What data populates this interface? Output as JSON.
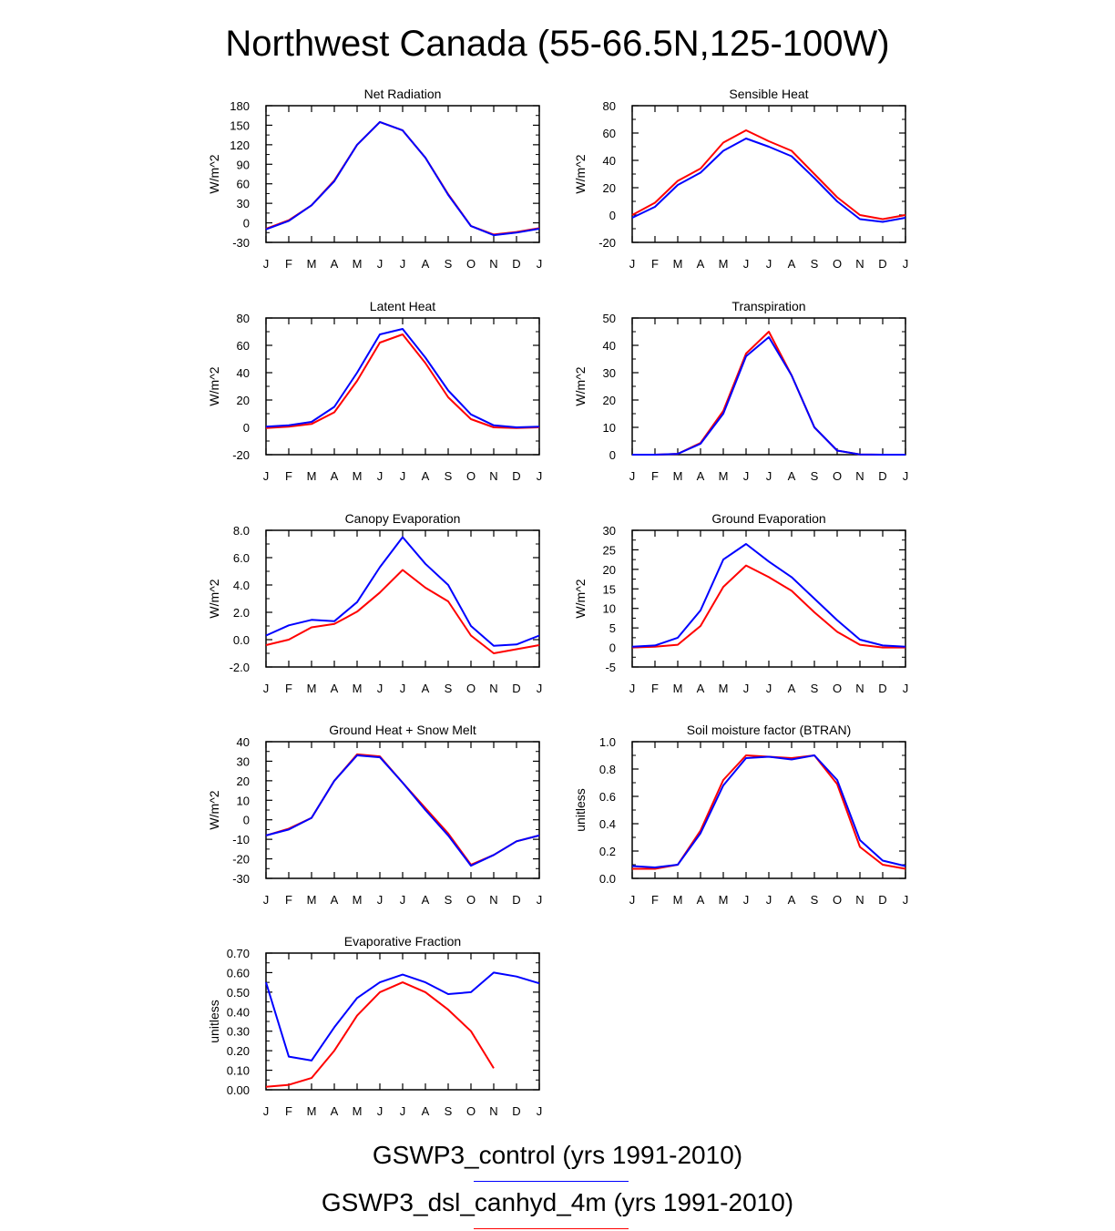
{
  "title": "Northwest Canada (55-66.5N,125-100W)",
  "months": [
    "J",
    "F",
    "M",
    "A",
    "M",
    "J",
    "J",
    "A",
    "S",
    "O",
    "N",
    "D",
    "J"
  ],
  "legend": [
    {
      "label": "GSWP3_control (yrs 1991-2010)",
      "color": "#0000ff"
    },
    {
      "label": "GSWP3_dsl_canhyd_4m (yrs 1991-2010)",
      "color": "#ff0000"
    }
  ],
  "chart_data": [
    {
      "type": "line",
      "title": "Net Radiation",
      "ylabel": "W/m^2",
      "ylim": [
        -30,
        180
      ],
      "yticks": [
        -30,
        0,
        30,
        60,
        90,
        120,
        150,
        180
      ],
      "yticklabels": [
        "-30",
        "0",
        "30",
        "60",
        "90",
        "120",
        "150",
        "180"
      ],
      "series": [
        {
          "name": "GSWP3_control",
          "color": "#0000ff",
          "values": [
            -10,
            3,
            27,
            64,
            120,
            155,
            142,
            100,
            43,
            -5,
            -19,
            -15,
            -9
          ]
        },
        {
          "name": "GSWP3_dsl_canhyd_4m",
          "color": "#ff0000",
          "values": [
            -9,
            4,
            27,
            65,
            120,
            155,
            142,
            100,
            44,
            -5,
            -18,
            -14,
            -8
          ]
        }
      ]
    },
    {
      "type": "line",
      "title": "Sensible Heat",
      "ylabel": "W/m^2",
      "ylim": [
        -20,
        80
      ],
      "yticks": [
        -20,
        0,
        20,
        40,
        60,
        80
      ],
      "yticklabels": [
        "-20",
        "0",
        "20",
        "40",
        "60",
        "80"
      ],
      "series": [
        {
          "name": "GSWP3_control",
          "color": "#0000ff",
          "values": [
            -2,
            6,
            22,
            31,
            47,
            56,
            50,
            43,
            27,
            10,
            -3,
            -5,
            -2
          ]
        },
        {
          "name": "GSWP3_dsl_canhyd_4m",
          "color": "#ff0000",
          "values": [
            0,
            9,
            25,
            34,
            53,
            62,
            54,
            47,
            30,
            13,
            0,
            -3,
            0
          ]
        }
      ]
    },
    {
      "type": "line",
      "title": "Latent Heat",
      "ylabel": "W/m^2",
      "ylim": [
        -20,
        80
      ],
      "yticks": [
        -20,
        0,
        20,
        40,
        60,
        80
      ],
      "yticklabels": [
        "-20",
        "0",
        "20",
        "40",
        "60",
        "80"
      ],
      "series": [
        {
          "name": "GSWP3_control",
          "color": "#0000ff",
          "values": [
            0.5,
            1.5,
            4,
            15,
            40,
            68,
            72,
            51,
            27,
            9.5,
            1.5,
            0,
            0.5
          ]
        },
        {
          "name": "GSWP3_dsl_canhyd_4m",
          "color": "#ff0000",
          "values": [
            -0.5,
            0.5,
            2.5,
            11,
            34,
            62,
            68,
            47,
            22,
            6,
            0,
            -0.5,
            0
          ]
        }
      ]
    },
    {
      "type": "line",
      "title": "Transpiration",
      "ylabel": "W/m^2",
      "ylim": [
        0,
        50
      ],
      "yticks": [
        0,
        10,
        20,
        30,
        40,
        50
      ],
      "yticklabels": [
        "0",
        "10",
        "20",
        "30",
        "40",
        "50"
      ],
      "series": [
        {
          "name": "GSWP3_control",
          "color": "#0000ff",
          "values": [
            0,
            0,
            0.3,
            4,
            15,
            36,
            43,
            29,
            10,
            1.5,
            0.1,
            0,
            0
          ]
        },
        {
          "name": "GSWP3_dsl_canhyd_4m",
          "color": "#ff0000",
          "values": [
            0,
            0,
            0.3,
            4.3,
            16,
            37,
            45,
            29,
            10,
            1.5,
            0.1,
            0,
            0
          ]
        }
      ]
    },
    {
      "type": "line",
      "title": "Canopy Evaporation",
      "ylabel": "W/m^2",
      "ylim": [
        -2.0,
        8.0
      ],
      "yticks": [
        -2,
        0,
        2,
        4,
        6,
        8
      ],
      "yticklabels": [
        "-2.0",
        "0.0",
        "2.0",
        "4.0",
        "6.0",
        "8.0"
      ],
      "series": [
        {
          "name": "GSWP3_control",
          "color": "#0000ff",
          "values": [
            0.3,
            1.05,
            1.45,
            1.35,
            2.75,
            5.3,
            7.5,
            5.55,
            4.0,
            1.0,
            -0.45,
            -0.35,
            0.3
          ]
        },
        {
          "name": "GSWP3_dsl_canhyd_4m",
          "color": "#ff0000",
          "values": [
            -0.4,
            0.0,
            0.9,
            1.15,
            2.05,
            3.45,
            5.1,
            3.8,
            2.8,
            0.3,
            -1.0,
            -0.7,
            -0.4
          ]
        }
      ]
    },
    {
      "type": "line",
      "title": "Ground Evaporation",
      "ylabel": "W/m^2",
      "ylim": [
        -5,
        30
      ],
      "yticks": [
        -5,
        0,
        5,
        10,
        15,
        20,
        25,
        30
      ],
      "yticklabels": [
        "-5",
        "0",
        "5",
        "10",
        "15",
        "20",
        "25",
        "30"
      ],
      "series": [
        {
          "name": "GSWP3_control",
          "color": "#0000ff",
          "values": [
            0.2,
            0.5,
            2.5,
            9.5,
            22.5,
            26.5,
            22,
            18,
            12.5,
            7,
            2,
            0.5,
            0.2
          ]
        },
        {
          "name": "GSWP3_dsl_canhyd_4m",
          "color": "#ff0000",
          "values": [
            0,
            0.2,
            0.7,
            5.5,
            15.5,
            21,
            18,
            14.5,
            9,
            4,
            0.7,
            0,
            0
          ]
        }
      ]
    },
    {
      "type": "line",
      "title": "Ground Heat + Snow Melt",
      "ylabel": "W/m^2",
      "ylim": [
        -30,
        40
      ],
      "yticks": [
        -30,
        -20,
        -10,
        0,
        10,
        20,
        30,
        40
      ],
      "yticklabels": [
        "-30",
        "-20",
        "-10",
        "0",
        "10",
        "20",
        "30",
        "40"
      ],
      "series": [
        {
          "name": "GSWP3_control",
          "color": "#0000ff",
          "values": [
            -8,
            -5,
            1,
            20,
            33,
            32,
            19,
            5,
            -8,
            -23.5,
            -18,
            -11,
            -8
          ]
        },
        {
          "name": "GSWP3_dsl_canhyd_4m",
          "color": "#ff0000",
          "values": [
            -8,
            -4.5,
            1,
            20,
            33.5,
            32.5,
            19,
            6,
            -7,
            -23,
            -18,
            -11,
            -8
          ]
        }
      ]
    },
    {
      "type": "line",
      "title": "Soil moisture factor (BTRAN)",
      "ylabel": "unitless",
      "ylim": [
        0.0,
        1.0
      ],
      "yticks": [
        0,
        0.2,
        0.4,
        0.6,
        0.8,
        1.0
      ],
      "yticklabels": [
        "0.0",
        "0.2",
        "0.4",
        "0.6",
        "0.8",
        "1.0"
      ],
      "series": [
        {
          "name": "GSWP3_control",
          "color": "#0000ff",
          "values": [
            0.09,
            0.08,
            0.1,
            0.33,
            0.68,
            0.88,
            0.89,
            0.87,
            0.9,
            0.72,
            0.28,
            0.13,
            0.09
          ]
        },
        {
          "name": "GSWP3_dsl_canhyd_4m",
          "color": "#ff0000",
          "values": [
            0.07,
            0.07,
            0.1,
            0.35,
            0.72,
            0.9,
            0.89,
            0.88,
            0.9,
            0.69,
            0.23,
            0.1,
            0.07
          ]
        }
      ]
    },
    {
      "type": "line",
      "title": "Evaporative Fraction",
      "ylabel": "unitless",
      "ylim": [
        0.0,
        0.7
      ],
      "yticks": [
        0,
        0.1,
        0.2,
        0.3,
        0.4,
        0.5,
        0.6,
        0.7
      ],
      "yticklabels": [
        "0.00",
        "0.10",
        "0.20",
        "0.30",
        "0.40",
        "0.50",
        "0.60",
        "0.70"
      ],
      "series": [
        {
          "name": "GSWP3_control",
          "color": "#0000ff",
          "values": [
            0.55,
            0.17,
            0.15,
            0.32,
            0.47,
            0.55,
            0.59,
            0.55,
            0.49,
            0.5,
            0.6,
            0.58,
            0.545
          ]
        },
        {
          "name": "GSWP3_dsl_canhyd_4m",
          "color": "#ff0000",
          "values": [
            0.015,
            0.025,
            0.06,
            0.2,
            0.38,
            0.5,
            0.55,
            0.5,
            0.41,
            0.3,
            0.11,
            null,
            null
          ]
        }
      ]
    }
  ]
}
